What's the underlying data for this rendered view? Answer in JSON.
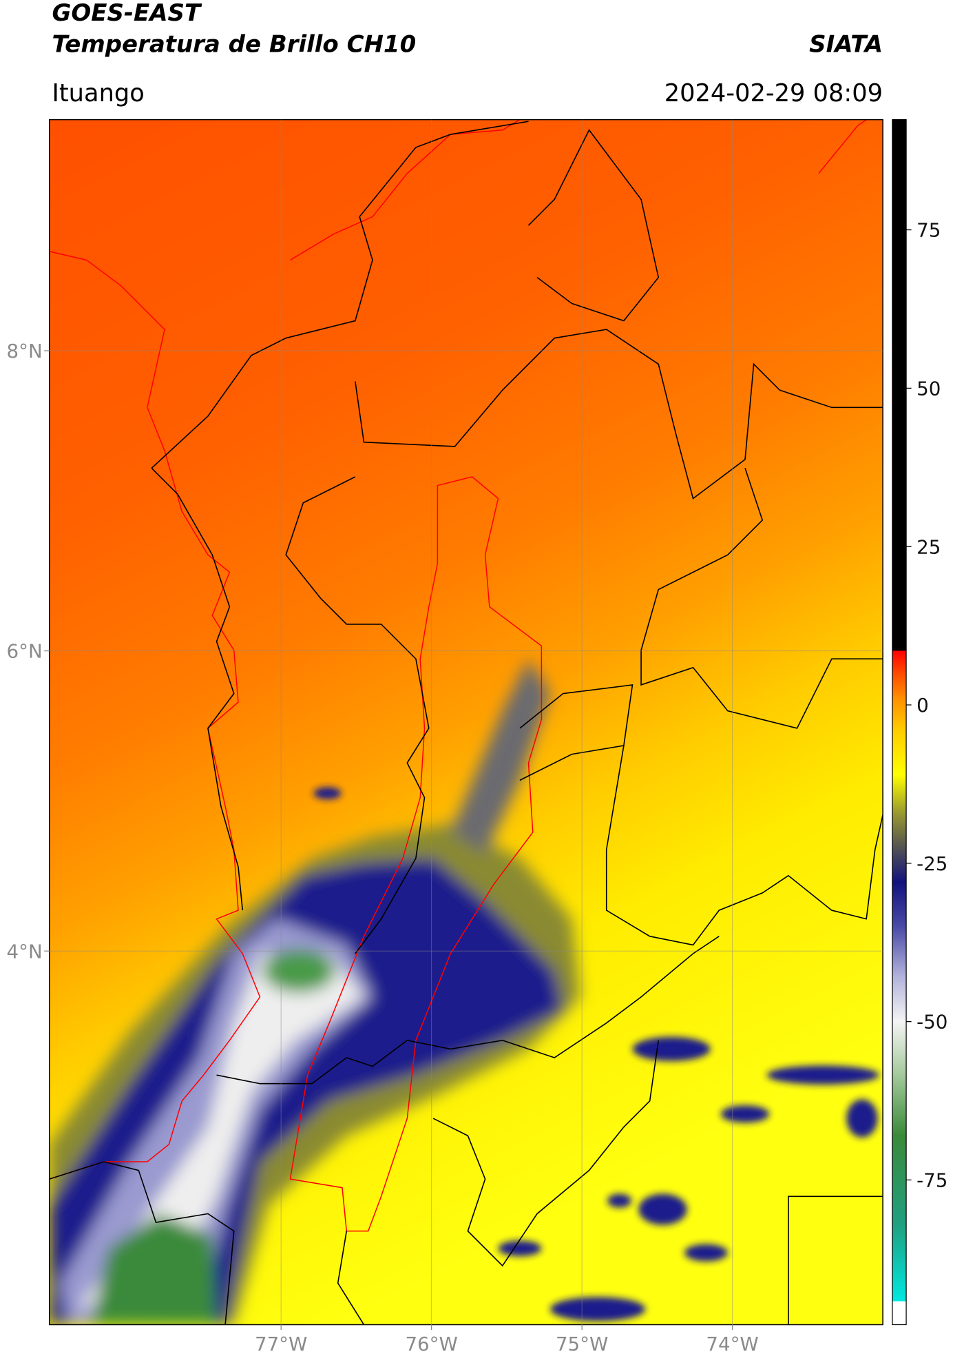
{
  "header": {
    "title": "GOES-EAST",
    "subtitle": "Temperatura de Brillo CH10",
    "organization": "SIATA",
    "location": "Ituango",
    "datetime": "2024-02-29 08:09"
  },
  "map": {
    "xlim": [
      -78.54,
      -73.0
    ],
    "ylim": [
      1.51,
      9.54
    ],
    "grid": true,
    "xticks": [
      {
        "value": -77,
        "label": "77°W"
      },
      {
        "value": -76,
        "label": "76°W"
      },
      {
        "value": -75,
        "label": "75°W"
      },
      {
        "value": -74,
        "label": "74°W"
      }
    ],
    "yticks": [
      {
        "value": 8,
        "label": "8°N"
      },
      {
        "value": 6,
        "label": "6°N"
      },
      {
        "value": 4,
        "label": "4°N"
      }
    ]
  },
  "colorbar": {
    "clim": [
      -97.85,
      92.4
    ],
    "ticks": [
      75,
      50,
      25,
      0,
      -25,
      -50,
      -75
    ],
    "stops": [
      {
        "value": -97.85,
        "color": "#ffffff"
      },
      {
        "value": -94.2,
        "color": "#ffffff"
      },
      {
        "value": -94.1,
        "color": "#00e8e0"
      },
      {
        "value": -82,
        "color": "#20a080"
      },
      {
        "value": -68,
        "color": "#3a8a3a"
      },
      {
        "value": -58,
        "color": "#a8cca0"
      },
      {
        "value": -50,
        "color": "#f4f4f4"
      },
      {
        "value": -43,
        "color": "#b4b4dc"
      },
      {
        "value": -35,
        "color": "#4a4aa8"
      },
      {
        "value": -28,
        "color": "#12127e"
      },
      {
        "value": -22,
        "color": "#5a5a50"
      },
      {
        "value": -17,
        "color": "#9a9a30"
      },
      {
        "value": -11,
        "color": "#ffff00"
      },
      {
        "value": -4,
        "color": "#ffcc00"
      },
      {
        "value": 1,
        "color": "#ff9000"
      },
      {
        "value": 5,
        "color": "#ff4a00"
      },
      {
        "value": 8.5,
        "color": "#ff0000"
      },
      {
        "value": 8.6,
        "color": "#000000"
      },
      {
        "value": 92.4,
        "color": "#000000"
      }
    ]
  }
}
